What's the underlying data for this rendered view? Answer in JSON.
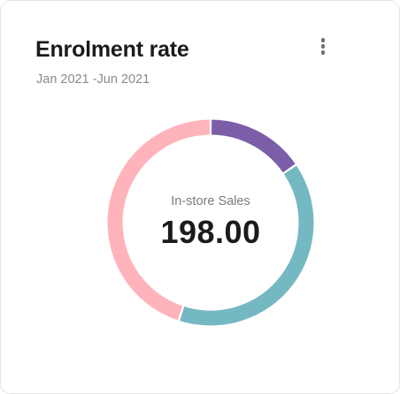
{
  "card": {
    "title": "Enrolment rate",
    "subtitle": "Jan 2021 -Jun 2021",
    "menu_icon": "more-vertical-icon"
  },
  "center": {
    "label": "In-store Sales",
    "value": "198.00"
  },
  "chart_data": {
    "type": "pie",
    "variant": "donut",
    "segments": [
      {
        "color": "#7b5ea7",
        "value": 0.155
      },
      {
        "color": "#74b8c2",
        "value": 0.395
      },
      {
        "color": "#ffb3ba",
        "value": 0.45
      }
    ]
  }
}
